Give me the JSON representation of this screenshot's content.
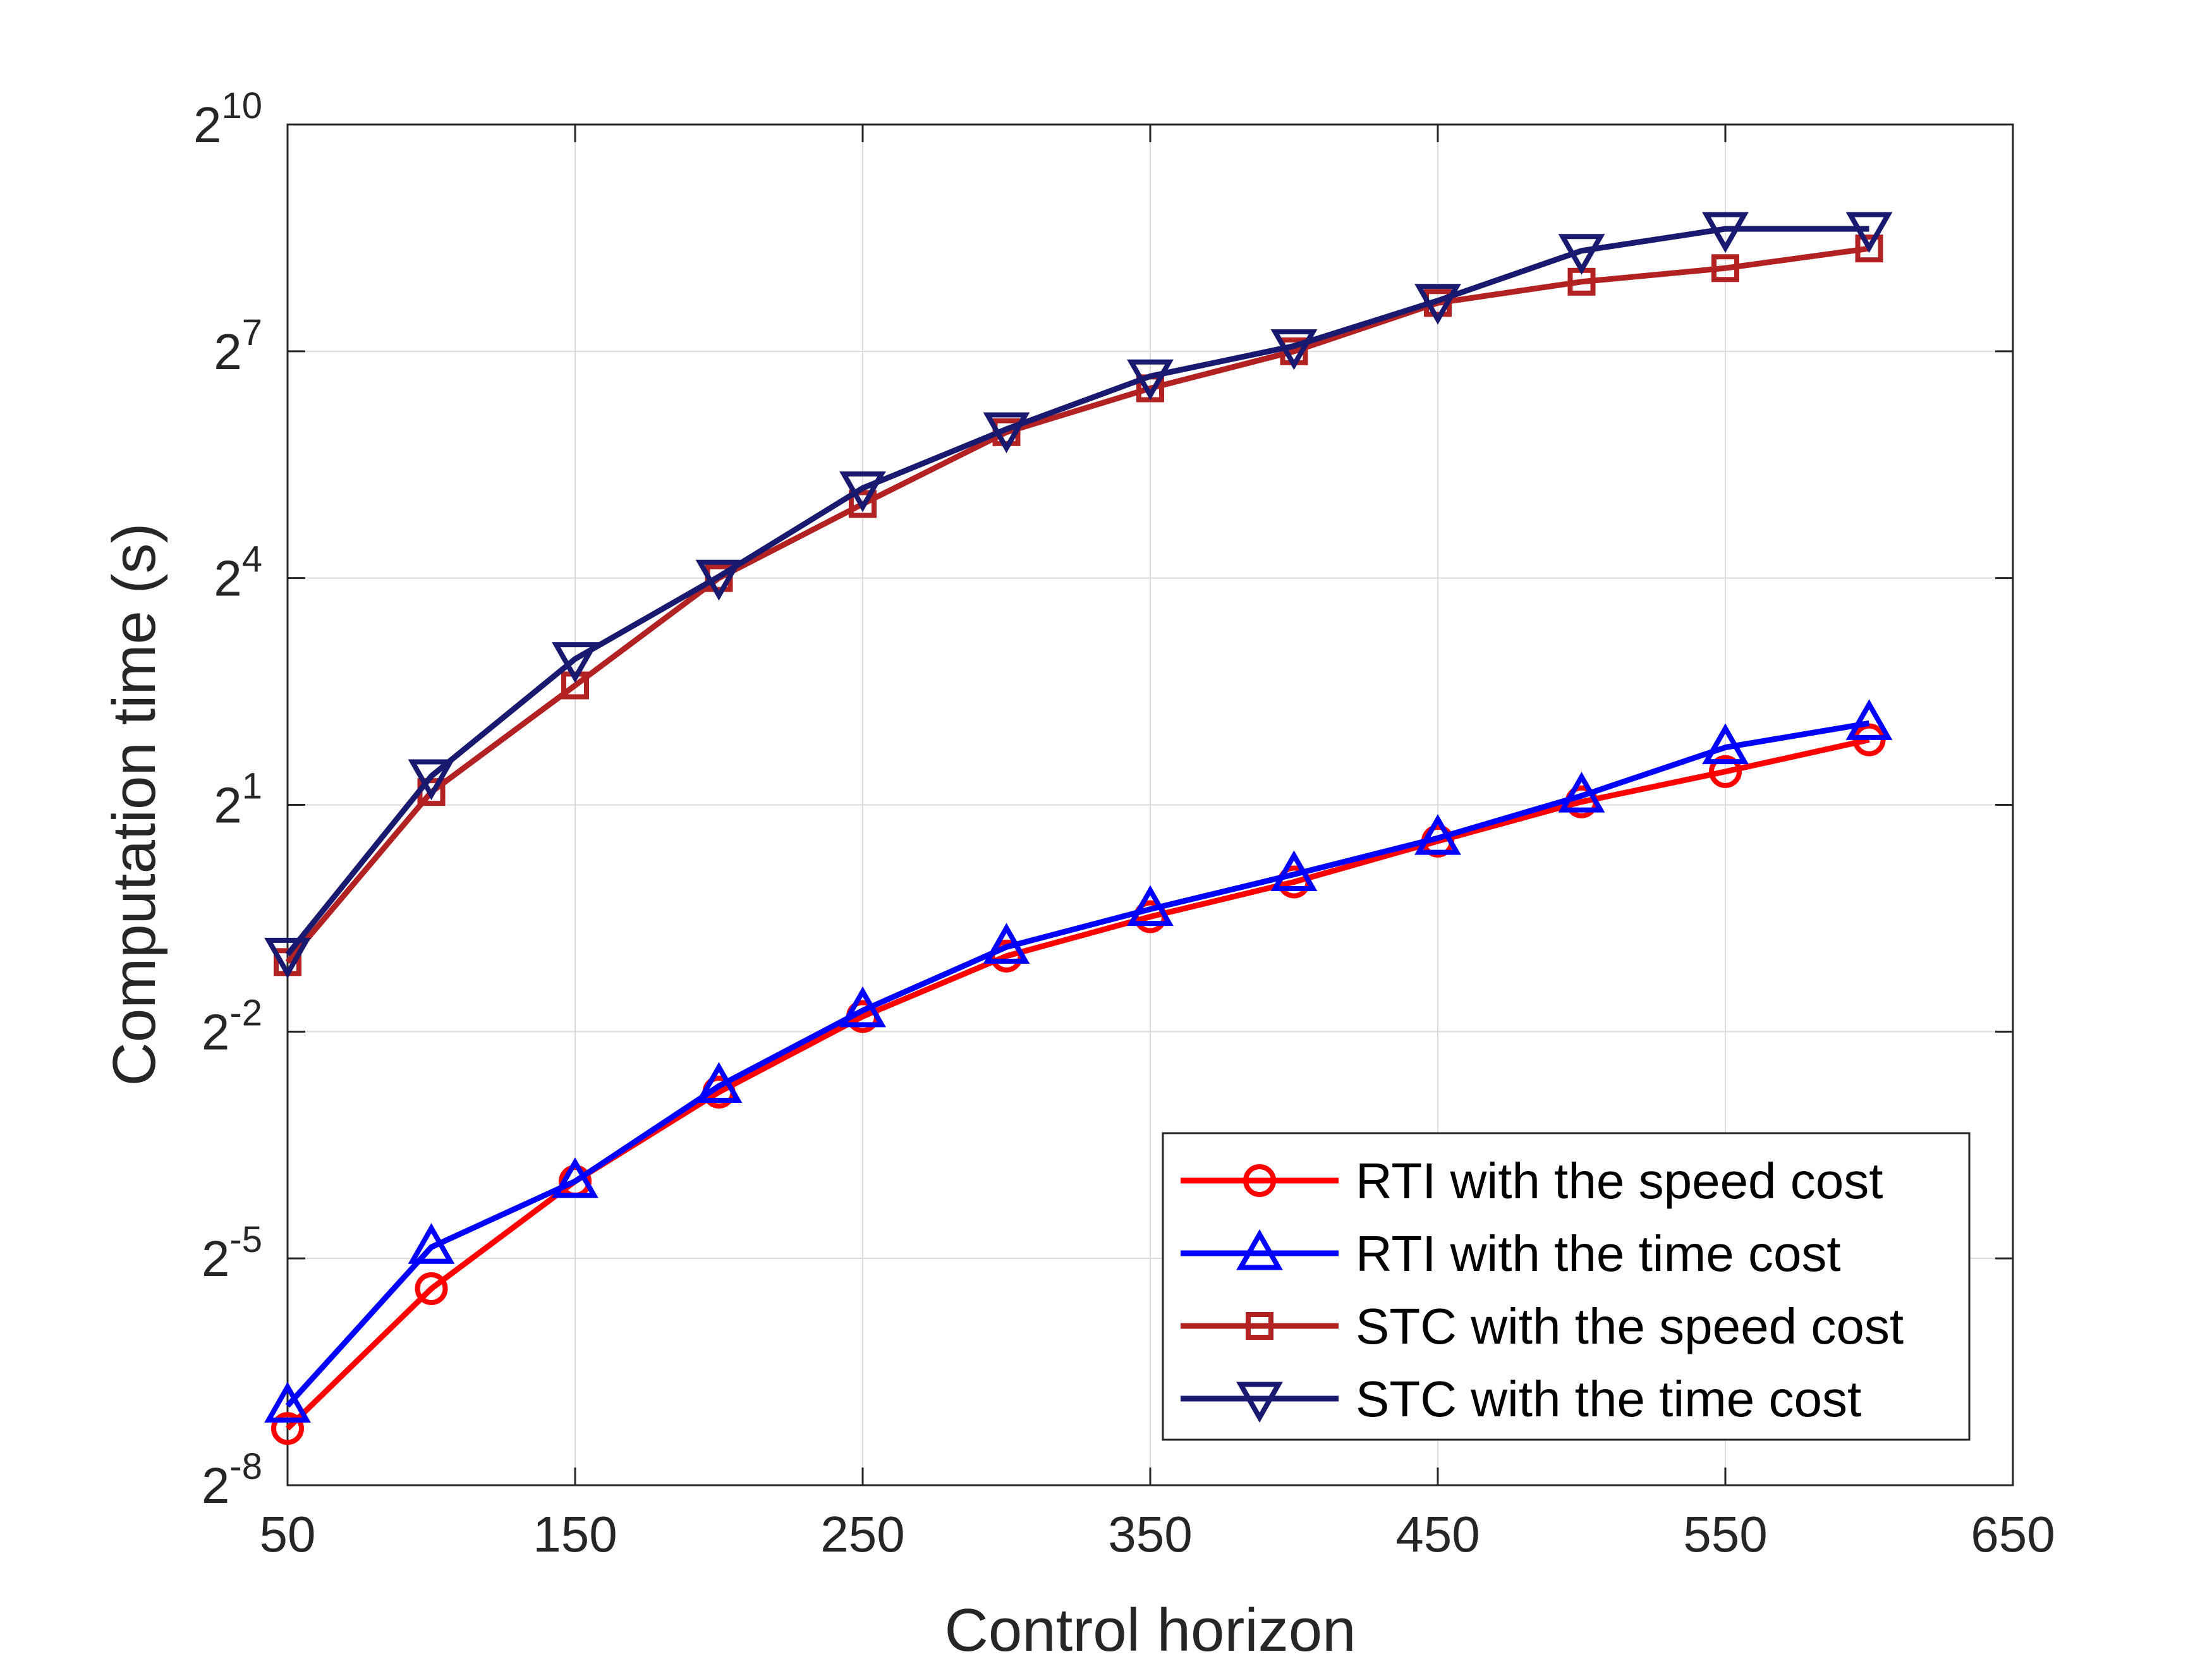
{
  "chart_data": {
    "type": "line",
    "title": "",
    "xlabel": "Control horizon",
    "ylabel": "Computation time (s)",
    "x": [
      50,
      100,
      150,
      200,
      250,
      300,
      350,
      400,
      450,
      500,
      550,
      600
    ],
    "xlim": [
      50,
      650
    ],
    "xticks": [
      "50",
      "150",
      "250",
      "350",
      "450",
      "550",
      "650"
    ],
    "ylim_log2": [
      -8,
      10
    ],
    "ytick_base": "2",
    "ytick_exponents": [
      "10",
      "7",
      "4",
      "1",
      "-2",
      "-5",
      "-8"
    ],
    "ytick_exponent_values": [
      10,
      7,
      4,
      1,
      -2,
      -5,
      -8
    ],
    "grid": true,
    "legend_position": "bottom-right",
    "y_scale": "log2",
    "series": [
      {
        "name": "RTI with the speed cost",
        "color": "#ff0000",
        "marker": "circle",
        "log2_values": [
          -7.25,
          -5.4,
          -3.98,
          -2.8,
          -1.8,
          -1.0,
          -0.48,
          -0.02,
          0.52,
          1.04,
          1.44,
          1.86
        ]
      },
      {
        "name": "RTI with the time cost",
        "color": "#0000ff",
        "marker": "triangle-up",
        "log2_values": [
          -6.95,
          -4.85,
          -3.98,
          -2.72,
          -1.72,
          -0.88,
          -0.38,
          0.08,
          0.56,
          1.12,
          1.76,
          2.08
        ]
      },
      {
        "name": "STC with the speed cost",
        "color": "#b22222",
        "marker": "square",
        "log2_values": [
          -1.08,
          1.17,
          2.58,
          4.0,
          4.98,
          5.93,
          6.51,
          7.0,
          7.64,
          7.92,
          8.1,
          8.36
        ]
      },
      {
        "name": "STC with the time cost",
        "color": "#191970",
        "marker": "triangle-down",
        "log2_values": [
          -0.98,
          1.38,
          2.93,
          4.02,
          5.19,
          5.97,
          6.67,
          7.07,
          7.67,
          8.33,
          8.62,
          8.62
        ]
      }
    ]
  }
}
